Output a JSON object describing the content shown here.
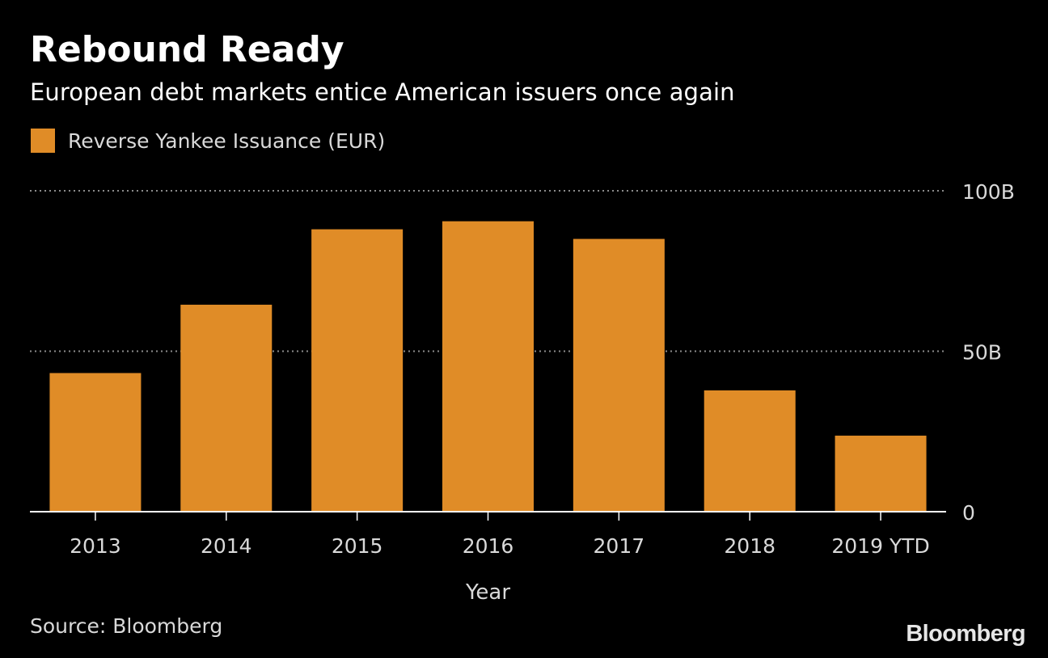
{
  "header": {
    "title": "Rebound Ready",
    "subtitle": "European debt markets entice American issuers once again"
  },
  "legend": {
    "label": "Reverse Yankee Issuance (EUR)",
    "color": "#e08c27"
  },
  "footer": {
    "source": "Source: Bloomberg",
    "brand": "Bloomberg"
  },
  "chart_data": {
    "type": "bar",
    "title": "Rebound Ready",
    "subtitle": "European debt markets entice American issuers once again",
    "xlabel": "Year",
    "ylabel": "",
    "categories": [
      "2013",
      "2014",
      "2015",
      "2016",
      "2017",
      "2018",
      "2019 YTD"
    ],
    "series": [
      {
        "name": "Reverse Yankee Issuance (EUR)",
        "values": [
          43.2,
          64.5,
          88.0,
          90.5,
          85.0,
          37.8,
          23.7
        ],
        "color": "#e08c27"
      }
    ],
    "ylim": [
      0,
      100
    ],
    "yticks": [
      {
        "value": 100,
        "label": "100B"
      },
      {
        "value": 50,
        "label": "50B"
      },
      {
        "value": 0,
        "label": "0"
      }
    ],
    "grid": true,
    "legend_position": "top-left",
    "colors": {
      "background": "#000000",
      "axis": "#ffffff",
      "grid": "#8c8c8c",
      "tick_label": "#d9d9d9"
    }
  }
}
